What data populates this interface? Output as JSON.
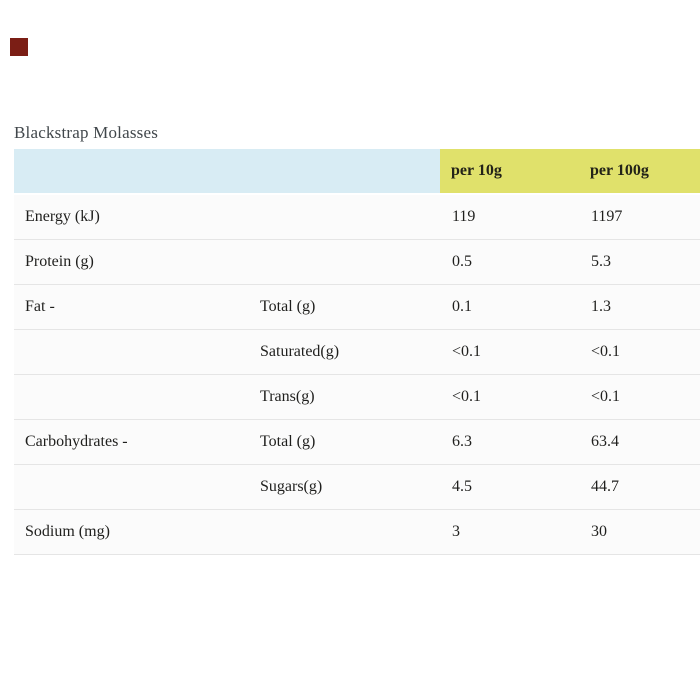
{
  "page": {
    "title": "Blackstrap Molasses",
    "background": "#ffffff",
    "decor_square_color": "#7b1e15"
  },
  "table": {
    "header": {
      "per10g": "per 10g",
      "per100g": "per 100g"
    },
    "colors": {
      "header_label_bg": "#d8ecf4",
      "header_value_bg": "#e0e16b",
      "row_bg": "#fbfbfb",
      "separator": "#e5e5e5",
      "text": "#1f1f1d",
      "title_text": "#41474b"
    },
    "rows": [
      {
        "label": "Energy (kJ)",
        "sub": "",
        "per10g": "119",
        "per100g": "1197"
      },
      {
        "label": "Protein (g)",
        "sub": "",
        "per10g": "0.5",
        "per100g": "5.3"
      },
      {
        "label": "Fat -",
        "sub": "Total (g)",
        "per10g": "0.1",
        "per100g": "1.3"
      },
      {
        "label": "",
        "sub": "Saturated(g)",
        "per10g": "<0.1",
        "per100g": "<0.1"
      },
      {
        "label": "",
        "sub": "Trans(g)",
        "per10g": "<0.1",
        "per100g": "<0.1"
      },
      {
        "label": "Carbohydrates -",
        "sub": "Total (g)",
        "per10g": "6.3",
        "per100g": "63.4"
      },
      {
        "label": "",
        "sub": "Sugars(g)",
        "per10g": "4.5",
        "per100g": "44.7"
      },
      {
        "label": "Sodium (mg)",
        "sub": "",
        "per10g": "3",
        "per100g": "30"
      }
    ]
  }
}
